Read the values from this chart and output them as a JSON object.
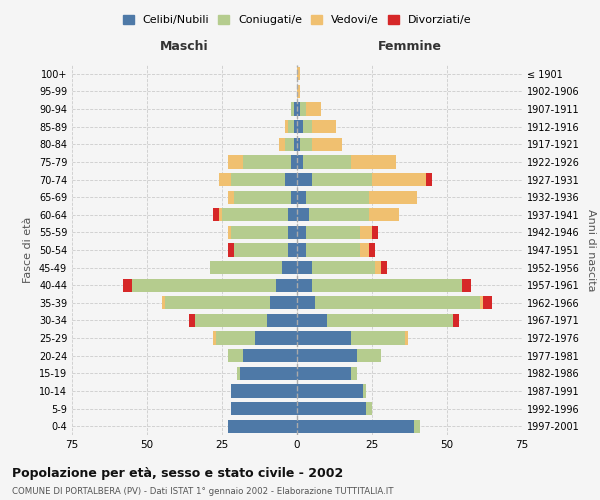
{
  "age_groups": [
    "100+",
    "95-99",
    "90-94",
    "85-89",
    "80-84",
    "75-79",
    "70-74",
    "65-69",
    "60-64",
    "55-59",
    "50-54",
    "45-49",
    "40-44",
    "35-39",
    "30-34",
    "25-29",
    "20-24",
    "15-19",
    "10-14",
    "5-9",
    "0-4"
  ],
  "birth_years": [
    "≤ 1901",
    "1902-1906",
    "1907-1911",
    "1912-1916",
    "1917-1921",
    "1922-1926",
    "1927-1931",
    "1932-1936",
    "1937-1941",
    "1942-1946",
    "1947-1951",
    "1952-1956",
    "1957-1961",
    "1962-1966",
    "1967-1971",
    "1972-1976",
    "1977-1981",
    "1982-1986",
    "1987-1991",
    "1992-1996",
    "1997-2001"
  ],
  "colors": {
    "celibi": "#4e79a7",
    "coniugati": "#b5cc8e",
    "vedovi": "#f0c070",
    "divorziati": "#d62728"
  },
  "maschi": {
    "celibi": [
      0,
      0,
      1,
      1,
      1,
      2,
      4,
      2,
      3,
      3,
      3,
      5,
      7,
      9,
      10,
      14,
      18,
      19,
      22,
      22,
      23
    ],
    "coniugati": [
      0,
      0,
      1,
      2,
      3,
      16,
      18,
      19,
      22,
      19,
      18,
      24,
      48,
      35,
      24,
      13,
      5,
      1,
      0,
      0,
      0
    ],
    "vedovi": [
      0,
      0,
      0,
      1,
      2,
      5,
      4,
      2,
      1,
      1,
      0,
      0,
      0,
      1,
      0,
      1,
      0,
      0,
      0,
      0,
      0
    ],
    "divorziati": [
      0,
      0,
      0,
      0,
      0,
      0,
      0,
      0,
      2,
      0,
      2,
      0,
      3,
      0,
      2,
      0,
      0,
      0,
      0,
      0,
      0
    ]
  },
  "femmine": {
    "celibi": [
      0,
      0,
      1,
      2,
      1,
      2,
      5,
      3,
      4,
      3,
      3,
      5,
      5,
      6,
      10,
      18,
      20,
      18,
      22,
      23,
      39
    ],
    "coniugati": [
      0,
      0,
      2,
      3,
      4,
      16,
      20,
      21,
      20,
      18,
      18,
      21,
      50,
      55,
      42,
      18,
      8,
      2,
      1,
      2,
      2
    ],
    "vedovi": [
      1,
      1,
      5,
      8,
      10,
      15,
      18,
      16,
      10,
      4,
      3,
      2,
      0,
      1,
      0,
      1,
      0,
      0,
      0,
      0,
      0
    ],
    "divorziati": [
      0,
      0,
      0,
      0,
      0,
      0,
      2,
      0,
      0,
      2,
      2,
      2,
      3,
      3,
      2,
      0,
      0,
      0,
      0,
      0,
      0
    ]
  },
  "xlim": 75,
  "title": "Popolazione per età, sesso e stato civile - 2002",
  "subtitle": "COMUNE DI PORTALBERA (PV) - Dati ISTAT 1° gennaio 2002 - Elaborazione TUTTITALIA.IT",
  "xlabel_maschi": "Maschi",
  "xlabel_femmine": "Femmine",
  "ylabel_left": "Fasce di età",
  "ylabel_right": "Anni di nascita",
  "legend_labels": [
    "Celibi/Nubili",
    "Coniugati/e",
    "Vedovi/e",
    "Divorziati/e"
  ],
  "bg_color": "#f5f5f5",
  "grid_color": "#cccccc"
}
